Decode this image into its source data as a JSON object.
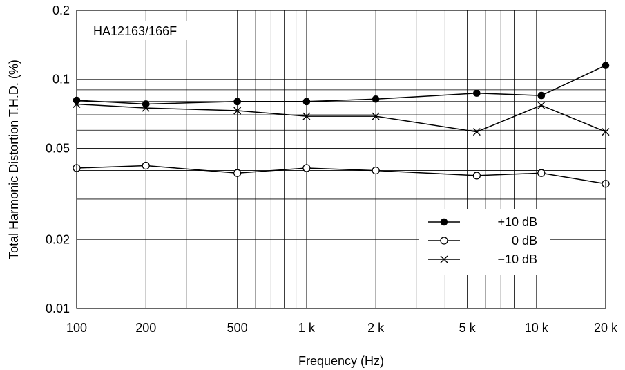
{
  "chart_data": {
    "type": "line",
    "title": "",
    "annotation": "HA12163/166F",
    "xlabel": "Frequency  (Hz)",
    "ylabel": "Total Harmonic Distortion T.H.D.  (%)",
    "x_scale": "log",
    "y_scale": "log",
    "xlim": [
      100,
      20000
    ],
    "ylim": [
      0.01,
      0.2
    ],
    "grid": true,
    "legend_position": "bottom-right",
    "x_ticks": [
      {
        "value": 100,
        "label": "100"
      },
      {
        "value": 200,
        "label": "200"
      },
      {
        "value": 500,
        "label": "500"
      },
      {
        "value": 1000,
        "label": "1 k"
      },
      {
        "value": 2000,
        "label": "2 k"
      },
      {
        "value": 5000,
        "label": "5 k"
      },
      {
        "value": 10000,
        "label": "10 k"
      },
      {
        "value": 20000,
        "label": "20 k"
      }
    ],
    "y_ticks": [
      {
        "value": 0.01,
        "label": "0.01"
      },
      {
        "value": 0.02,
        "label": "0.02"
      },
      {
        "value": 0.05,
        "label": "0.05"
      },
      {
        "value": 0.1,
        "label": "0.1"
      },
      {
        "value": 0.2,
        "label": "0.2"
      }
    ],
    "series": [
      {
        "name": "+10 dB",
        "marker": "filled-circle",
        "x": [
          100,
          200,
          500,
          1000,
          2000,
          5500,
          10500,
          20000
        ],
        "y": [
          0.081,
          0.078,
          0.08,
          0.08,
          0.082,
          0.087,
          0.085,
          0.115
        ]
      },
      {
        "name": "0 dB",
        "marker": "open-circle",
        "x": [
          100,
          200,
          500,
          1000,
          2000,
          5500,
          10500,
          20000
        ],
        "y": [
          0.041,
          0.042,
          0.039,
          0.041,
          0.04,
          0.038,
          0.039,
          0.035
        ]
      },
      {
        "name": "−10 dB",
        "marker": "cross",
        "x": [
          100,
          200,
          500,
          1000,
          2000,
          5500,
          10500,
          20000
        ],
        "y": [
          0.078,
          0.075,
          0.073,
          0.069,
          0.069,
          0.059,
          0.077,
          0.059
        ]
      }
    ]
  }
}
